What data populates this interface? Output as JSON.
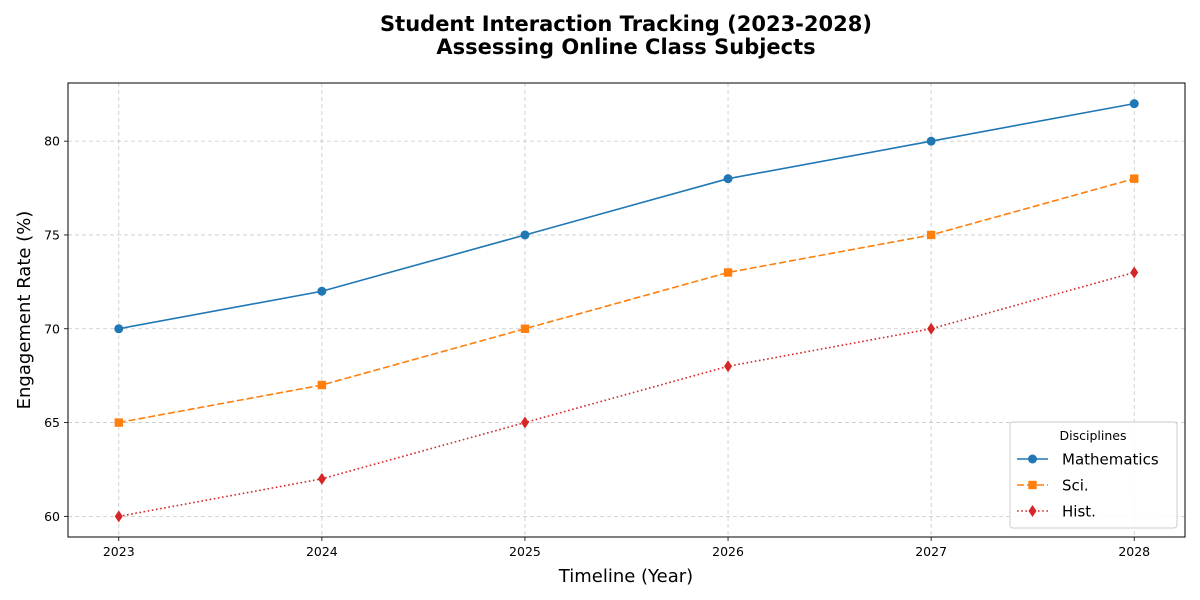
{
  "chart_data": {
    "type": "line",
    "title": "Student Interaction Tracking (2023-2028)",
    "subtitle": "Assessing Online Class Subjects",
    "xlabel": "Timeline (Year)",
    "ylabel": "Engagement Rate (%)",
    "x": [
      2023,
      2024,
      2025,
      2026,
      2027,
      2028
    ],
    "x_tick_labels": [
      "2023",
      "2024",
      "2025",
      "2026",
      "2027",
      "2028"
    ],
    "xlim": [
      2022.75,
      2028.25
    ],
    "ylim": [
      58.9,
      83.1
    ],
    "y_ticks": [
      60,
      65,
      70,
      75,
      80
    ],
    "y_tick_labels": [
      "60",
      "65",
      "70",
      "75",
      "80"
    ],
    "grid": true,
    "legend": {
      "title": "Disciplines",
      "placement": "lower-right"
    },
    "series": [
      {
        "name": "Mathematics",
        "values": [
          70,
          72,
          75,
          78,
          80,
          82
        ],
        "color": "#1f77b4",
        "line_style": "solid",
        "marker": "circle"
      },
      {
        "name": "Sci.",
        "values": [
          65,
          67,
          70,
          73,
          75,
          78
        ],
        "color": "#ff7f0e",
        "line_style": "dashed",
        "marker": "square"
      },
      {
        "name": "Hist.",
        "values": [
          60,
          62,
          65,
          68,
          70,
          73
        ],
        "color": "#d62728",
        "line_style": "dotted",
        "marker": "diamond"
      }
    ]
  }
}
